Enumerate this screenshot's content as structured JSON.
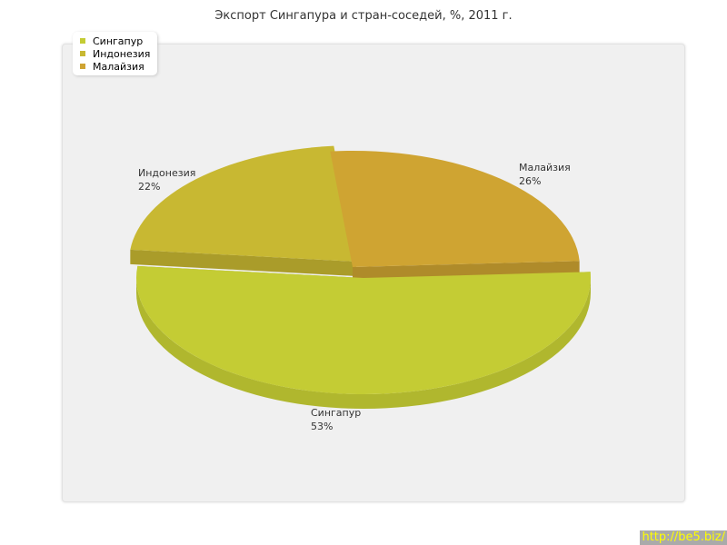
{
  "chart_data": {
    "type": "pie",
    "title": "Экспорт Сингапура и стран-соседей, %, 2011 г.",
    "categories": [
      "Сингапур",
      "Индонезия",
      "Малайзия"
    ],
    "values": [
      53,
      22,
      26
    ],
    "labels": [
      "53%",
      "22%",
      "26%"
    ],
    "colors": [
      "#c4cc34",
      "#c8b832",
      "#cfa432"
    ],
    "legend": "top-left",
    "three_d": true
  },
  "watermark": "http://be5.biz/"
}
